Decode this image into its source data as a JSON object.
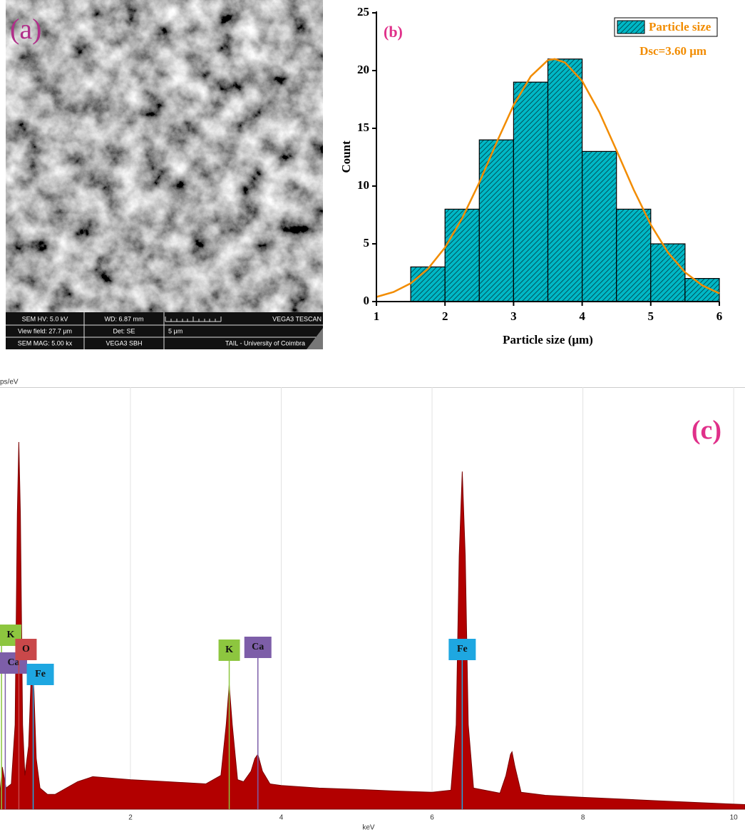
{
  "sem_image": {
    "label": "(a)",
    "hv": "SEM HV: 5.0 kV",
    "wd": "WD: 6.87 mm",
    "brand": "VEGA3 TESCAN",
    "view_field": "View field: 27.7 μm",
    "det": "Det: SE",
    "scale": "5 μm",
    "mag": "SEM MAG: 5.00 kx",
    "model": "VEGA3 SBH",
    "lab": "TAIL - University of Coimbra"
  },
  "chart_data": [
    {
      "type": "histogram",
      "panel_label": "(b)",
      "xlabel": "Particle size (μm)",
      "ylabel": "Count",
      "bins": [
        1.5,
        2.0,
        2.5,
        3.0,
        3.5,
        4.0,
        4.5,
        5.0,
        5.5,
        6.0
      ],
      "series": [
        {
          "name": "Particle size",
          "color": "#00b8c6",
          "values": [
            3,
            8,
            14,
            19,
            21,
            13,
            8,
            5,
            2
          ]
        }
      ],
      "fit": {
        "color": "#f28c00",
        "x": [
          1,
          1.25,
          1.5,
          1.75,
          2,
          2.25,
          2.5,
          2.75,
          3,
          3.25,
          3.5,
          3.6,
          3.75,
          4,
          4.25,
          4.5,
          4.75,
          5,
          5.25,
          5.5,
          5.75,
          6
        ],
        "values": [
          0.4,
          0.83,
          1.58,
          2.82,
          4.68,
          7.22,
          10.3,
          13.75,
          17.0,
          19.5,
          20.9,
          21,
          20.7,
          19.1,
          16.4,
          13.1,
          9.7,
          6.66,
          4.26,
          2.53,
          1.4,
          0.71
        ]
      },
      "annotation": "Dsc=3.60 μm",
      "annotation_color": "#f28c00",
      "xlim": [
        1,
        6
      ],
      "xticks": [
        1,
        2,
        3,
        4,
        5,
        6
      ],
      "ylim": [
        0,
        25
      ],
      "yticks": [
        0,
        5,
        10,
        15,
        20,
        25
      ],
      "legend": "upper right"
    },
    {
      "type": "area",
      "panel_label": "(c)",
      "xlabel": "keV",
      "ylabel": "ps/eV",
      "color": "#b20000",
      "x": [
        0.27,
        0.3,
        0.35,
        0.42,
        0.47,
        0.5,
        0.52,
        0.54,
        0.57,
        0.6,
        0.65,
        0.68,
        0.7,
        0.72,
        0.75,
        0.8,
        0.9,
        1.0,
        1.3,
        1.5,
        2.0,
        2.5,
        3.0,
        3.2,
        3.27,
        3.31,
        3.35,
        3.42,
        3.5,
        3.6,
        3.65,
        3.69,
        3.75,
        3.85,
        4.0,
        4.5,
        5.0,
        5.5,
        6.0,
        6.25,
        6.32,
        6.36,
        6.4,
        6.44,
        6.48,
        6.55,
        6.9,
        6.98,
        7.04,
        7.06,
        7.1,
        7.18,
        7.5,
        8.0,
        9.0,
        10.0,
        10.15
      ],
      "values": [
        4,
        10,
        5,
        6,
        20,
        70,
        87,
        70,
        20,
        8,
        15,
        30,
        34,
        28,
        12,
        5,
        3.5,
        3.5,
        6.5,
        7.7,
        7,
        6.5,
        6,
        8,
        20,
        29.5,
        20,
        7,
        6.5,
        9,
        12,
        13,
        9,
        6,
        5.6,
        5,
        4.7,
        4.3,
        4,
        4.5,
        20,
        60,
        80,
        60,
        20,
        5,
        3.8,
        8,
        13,
        13.6,
        10,
        4,
        3.3,
        2.8,
        2,
        1.2,
        1.1
      ],
      "xlim": [
        0.27,
        10.15
      ],
      "xticks": [
        2,
        4,
        6,
        8,
        10
      ],
      "ylim": [
        0,
        100
      ],
      "grid": true,
      "markers": [
        {
          "label": "K",
          "x": 0.29,
          "color": "#8dc63f"
        },
        {
          "label": "Ca",
          "x": 0.34,
          "color": "#7d5ea8"
        },
        {
          "label": "O",
          "x": 0.52,
          "color": "#c9484a"
        },
        {
          "label": "Fe",
          "x": 0.71,
          "color": "#1ea7e1"
        },
        {
          "label": "K",
          "x": 3.31,
          "color": "#8dc63f"
        },
        {
          "label": "Ca",
          "x": 3.69,
          "color": "#7d5ea8"
        },
        {
          "label": "Fe",
          "x": 6.4,
          "color": "#1ea7e1"
        }
      ]
    }
  ]
}
